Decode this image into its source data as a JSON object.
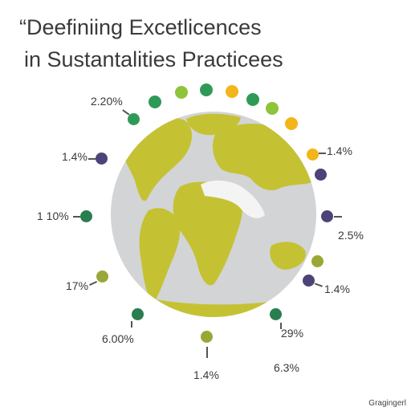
{
  "title": {
    "line1": "“Deefinіing  Excetlicences",
    "line2": "in Sustantalities  Practicees"
  },
  "colors": {
    "land": "#c4c233",
    "ocean": "#d3d4d6",
    "green": "#2f9a57",
    "dark_green": "#2a7d4f",
    "olive": "#9aa737",
    "yellow": "#f2b51a",
    "purple": "#4b4478"
  },
  "labels": {
    "top_left": "2.20%",
    "left_upper": "1.4%",
    "left_middle": "1 10%",
    "left_lower": "17%",
    "bottom_left": "6.00%",
    "bottom_center": "1.4%",
    "bottom_right_upper": "29%",
    "bottom_right_lower": "6.3%",
    "right_upper": "1.4%",
    "right_middle": "2.5%",
    "right_lower": "1.4%"
  },
  "watermark": "Gragingerl"
}
